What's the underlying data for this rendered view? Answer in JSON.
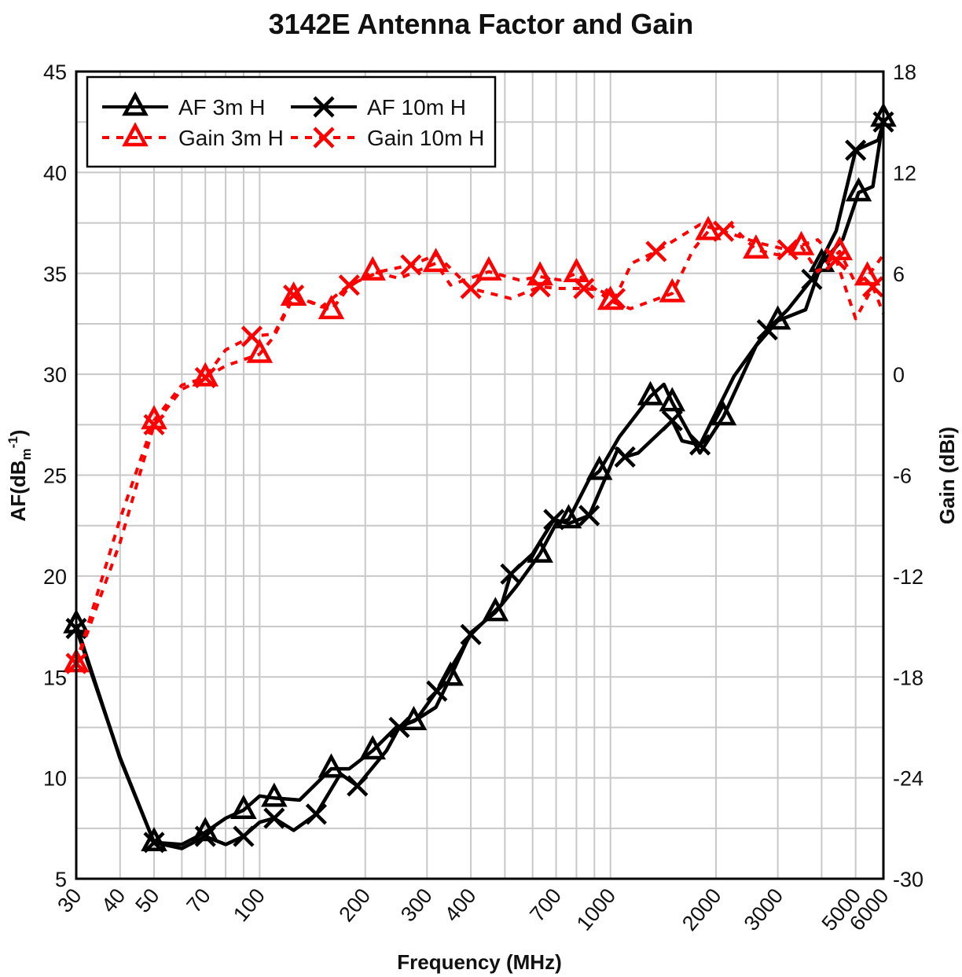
{
  "chart_data": {
    "type": "line",
    "title": "3142E Antenna Factor and Gain",
    "xlabel": "Frequency (MHz)",
    "ylabel": {
      "main": "AF(dB",
      "sub": "m",
      "sup": "-1",
      "close": ")"
    },
    "y2label": "Gain (dBi)",
    "x_scale": "log",
    "xlim": [
      30,
      6000
    ],
    "ylim": [
      5,
      45
    ],
    "y2lim": [
      -30,
      18
    ],
    "x_ticks": [
      30,
      40,
      50,
      70,
      100,
      200,
      300,
      400,
      700,
      1000,
      2000,
      3000,
      5000,
      6000
    ],
    "y_ticks": [
      5,
      10,
      15,
      20,
      25,
      30,
      35,
      40,
      45
    ],
    "y2_ticks": [
      -30,
      -24,
      -18,
      -12,
      -6,
      0,
      6,
      12,
      18
    ],
    "grid": true,
    "legend_position": "top-left",
    "colors": {
      "af": "#000000",
      "gain": "#ff0000",
      "grid": "#c8c8c8"
    },
    "series": [
      {
        "name": "AF 3m H",
        "axis": "left",
        "marker": "triangle",
        "color": "#000000",
        "dash": false,
        "points": [
          [
            30,
            17.6
          ],
          [
            40,
            10.95
          ],
          [
            50,
            6.8
          ],
          [
            60,
            6.7
          ],
          [
            70,
            7.3
          ],
          [
            80,
            8.0
          ],
          [
            90,
            8.4
          ],
          [
            100,
            9.1
          ],
          [
            110,
            9.0
          ],
          [
            130,
            8.9
          ],
          [
            160,
            10.45
          ],
          [
            180,
            10.45
          ],
          [
            210,
            11.35
          ],
          [
            245,
            12.5
          ],
          [
            275,
            12.8
          ],
          [
            318,
            13.5
          ],
          [
            350,
            15.0
          ],
          [
            400,
            17.2
          ],
          [
            470,
            18.2
          ],
          [
            540,
            19.5
          ],
          [
            630,
            21.1
          ],
          [
            700,
            22.6
          ],
          [
            760,
            22.8
          ],
          [
            870,
            24.8
          ],
          [
            930,
            25.2
          ],
          [
            1060,
            26.9
          ],
          [
            1300,
            28.9
          ],
          [
            1420,
            29.5
          ],
          [
            1500,
            28.6
          ],
          [
            1800,
            26.1
          ],
          [
            2100,
            27.9
          ],
          [
            2600,
            31.4
          ],
          [
            3000,
            32.65
          ],
          [
            3600,
            33.2
          ],
          [
            4000,
            35.5
          ],
          [
            4600,
            36.7
          ],
          [
            5100,
            39.0
          ],
          [
            5600,
            39.3
          ],
          [
            6000,
            42.7
          ]
        ]
      },
      {
        "name": "AF 10m H",
        "axis": "left",
        "marker": "x",
        "color": "#000000",
        "dash": false,
        "points": [
          [
            30,
            17.4
          ],
          [
            40,
            11.0
          ],
          [
            50,
            6.8
          ],
          [
            60,
            6.5
          ],
          [
            70,
            7.1
          ],
          [
            80,
            6.7
          ],
          [
            90,
            7.1
          ],
          [
            100,
            7.8
          ],
          [
            110,
            8.0
          ],
          [
            125,
            7.4
          ],
          [
            145,
            8.2
          ],
          [
            170,
            10.2
          ],
          [
            190,
            9.6
          ],
          [
            230,
            11.35
          ],
          [
            250,
            12.5
          ],
          [
            280,
            12.9
          ],
          [
            320,
            14.3
          ],
          [
            350,
            15.4
          ],
          [
            400,
            17.1
          ],
          [
            490,
            18.6
          ],
          [
            520,
            20.1
          ],
          [
            600,
            21.1
          ],
          [
            690,
            22.8
          ],
          [
            760,
            22.6
          ],
          [
            870,
            23.0
          ],
          [
            1050,
            26.3
          ],
          [
            1100,
            25.9
          ],
          [
            1200,
            26.1
          ],
          [
            1500,
            27.7
          ],
          [
            1600,
            26.7
          ],
          [
            1800,
            26.5
          ],
          [
            2250,
            29.9
          ],
          [
            2800,
            32.2
          ],
          [
            3200,
            33.2
          ],
          [
            3750,
            34.7
          ],
          [
            4400,
            37.1
          ],
          [
            5000,
            41.1
          ],
          [
            5800,
            41.6
          ],
          [
            6000,
            42.5
          ]
        ]
      },
      {
        "name": "Gain 3m H",
        "axis": "right",
        "marker": "triangle",
        "color": "#ff0000",
        "dash": true,
        "points": [
          [
            30,
            -17.2
          ],
          [
            40,
            -8.6
          ],
          [
            50,
            -2.75
          ],
          [
            60,
            -0.65
          ],
          [
            70,
            -0.2
          ],
          [
            80,
            0.5
          ],
          [
            100,
            1.2
          ],
          [
            110,
            2.25
          ],
          [
            125,
            4.6
          ],
          [
            140,
            4.3
          ],
          [
            160,
            3.8
          ],
          [
            180,
            5.2
          ],
          [
            210,
            6.1
          ],
          [
            250,
            5.7
          ],
          [
            318,
            6.6
          ],
          [
            350,
            5.3
          ],
          [
            450,
            6.1
          ],
          [
            550,
            5.6
          ],
          [
            630,
            5.8
          ],
          [
            720,
            5.6
          ],
          [
            800,
            6.0
          ],
          [
            900,
            5.1
          ],
          [
            1000,
            4.35
          ],
          [
            1140,
            3.9
          ],
          [
            1500,
            4.8
          ],
          [
            1720,
            7.4
          ],
          [
            1900,
            8.5
          ],
          [
            2200,
            8.9
          ],
          [
            2600,
            7.4
          ],
          [
            3000,
            7.1
          ],
          [
            3500,
            7.6
          ],
          [
            3900,
            6.1
          ],
          [
            4500,
            7.3
          ],
          [
            5000,
            5.4
          ],
          [
            5400,
            5.8
          ],
          [
            6000,
            7.1
          ]
        ]
      },
      {
        "name": "Gain 10m H",
        "axis": "right",
        "marker": "x",
        "color": "#ff0000",
        "dash": true,
        "points": [
          [
            30,
            -17.2
          ],
          [
            40,
            -10.0
          ],
          [
            50,
            -3.0
          ],
          [
            60,
            -0.9
          ],
          [
            70,
            -0.2
          ],
          [
            80,
            1.45
          ],
          [
            95,
            2.25
          ],
          [
            110,
            2.4
          ],
          [
            125,
            4.7
          ],
          [
            150,
            4.0
          ],
          [
            180,
            5.3
          ],
          [
            220,
            6.1
          ],
          [
            270,
            6.5
          ],
          [
            320,
            7.1
          ],
          [
            400,
            5.1
          ],
          [
            520,
            4.5
          ],
          [
            630,
            5.2
          ],
          [
            720,
            5.1
          ],
          [
            840,
            5.1
          ],
          [
            930,
            5.0
          ],
          [
            1030,
            4.5
          ],
          [
            1150,
            6.6
          ],
          [
            1350,
            7.3
          ],
          [
            1800,
            8.9
          ],
          [
            2100,
            8.5
          ],
          [
            2650,
            7.8
          ],
          [
            3200,
            7.4
          ],
          [
            3900,
            8.0
          ],
          [
            4400,
            6.8
          ],
          [
            5000,
            3.3
          ],
          [
            5600,
            5.2
          ],
          [
            6000,
            3.6
          ]
        ]
      }
    ]
  }
}
